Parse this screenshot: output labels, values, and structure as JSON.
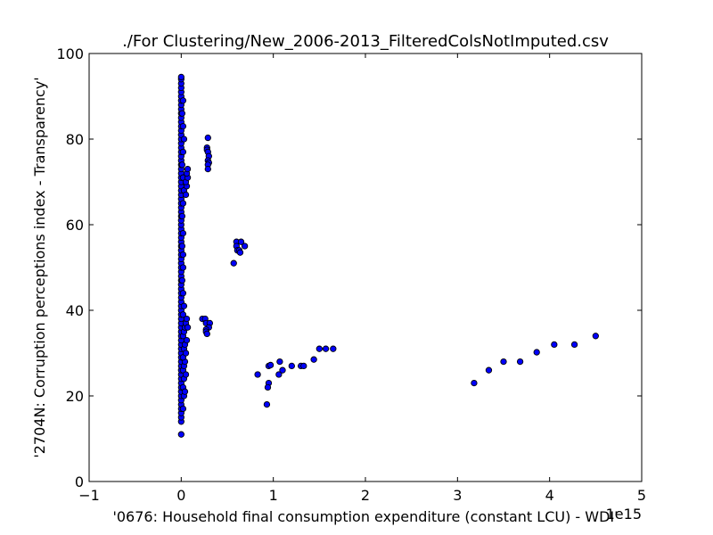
{
  "chart_data": {
    "type": "scatter",
    "title": "./For Clustering/New_2006-2013_FilteredColsNotImputed.csv",
    "xlabel": "'0676: Household final consumption expenditure  (constant LCU) - WDI'",
    "ylabel": "'2704N: Corruption perceptions index - Transparency'",
    "x_offset_label": "1e15",
    "xlim": [
      -1,
      5
    ],
    "ylim": [
      0,
      100
    ],
    "xticks": [
      -1,
      0,
      1,
      2,
      3,
      4,
      5
    ],
    "yticks": [
      0,
      20,
      40,
      60,
      80,
      100
    ],
    "grid": false,
    "marker_color": "#0000ff",
    "series": [
      {
        "points": [
          [
            0.0,
            11
          ],
          [
            0.0,
            14
          ],
          [
            0.0,
            15
          ],
          [
            0.0,
            16
          ],
          [
            0.0,
            17
          ],
          [
            0.0,
            18
          ],
          [
            0.0,
            19
          ],
          [
            0.0,
            20
          ],
          [
            0.0,
            21
          ],
          [
            0.0,
            22
          ],
          [
            0.0,
            23
          ],
          [
            0.0,
            24
          ],
          [
            0.0,
            25
          ],
          [
            0.0,
            26
          ],
          [
            0.0,
            27
          ],
          [
            0.0,
            28
          ],
          [
            0.0,
            29
          ],
          [
            0.0,
            30
          ],
          [
            0.0,
            31
          ],
          [
            0.0,
            32
          ],
          [
            0.0,
            33
          ],
          [
            0.0,
            34
          ],
          [
            0.0,
            35
          ],
          [
            0.0,
            36
          ],
          [
            0.0,
            37
          ],
          [
            0.0,
            38
          ],
          [
            0.0,
            39
          ],
          [
            0.0,
            40
          ],
          [
            0.0,
            41
          ],
          [
            0.0,
            42
          ],
          [
            0.0,
            43
          ],
          [
            0.0,
            44
          ],
          [
            0.0,
            45
          ],
          [
            0.0,
            46
          ],
          [
            0.0,
            47
          ],
          [
            0.0,
            48
          ],
          [
            0.0,
            49
          ],
          [
            0.0,
            50
          ],
          [
            0.0,
            51
          ],
          [
            0.0,
            52
          ],
          [
            0.0,
            53
          ],
          [
            0.0,
            54
          ],
          [
            0.0,
            55
          ],
          [
            0.0,
            56
          ],
          [
            0.0,
            57
          ],
          [
            0.0,
            58
          ],
          [
            0.0,
            59
          ],
          [
            0.0,
            60
          ],
          [
            0.0,
            61
          ],
          [
            0.0,
            62
          ],
          [
            0.0,
            63
          ],
          [
            0.0,
            64
          ],
          [
            0.0,
            65
          ],
          [
            0.0,
            66
          ],
          [
            0.0,
            67
          ],
          [
            0.0,
            68
          ],
          [
            0.0,
            69
          ],
          [
            0.0,
            70
          ],
          [
            0.0,
            71
          ],
          [
            0.0,
            72
          ],
          [
            0.0,
            73
          ],
          [
            0.0,
            74
          ],
          [
            0.0,
            75
          ],
          [
            0.0,
            76
          ],
          [
            0.0,
            77
          ],
          [
            0.0,
            78
          ],
          [
            0.0,
            79
          ],
          [
            0.0,
            80
          ],
          [
            0.0,
            81
          ],
          [
            0.0,
            82
          ],
          [
            0.0,
            83
          ],
          [
            0.0,
            84
          ],
          [
            0.0,
            85
          ],
          [
            0.0,
            86
          ],
          [
            0.0,
            87
          ],
          [
            0.0,
            88
          ],
          [
            0.0,
            89
          ],
          [
            0.0,
            90
          ],
          [
            0.0,
            91
          ],
          [
            0.0,
            92
          ],
          [
            0.0,
            93
          ],
          [
            0.0,
            94
          ],
          [
            0.0,
            94.5
          ],
          [
            0.02,
            17
          ],
          [
            0.03,
            20
          ],
          [
            0.02,
            22
          ],
          [
            0.03,
            24
          ],
          [
            0.02,
            26
          ],
          [
            0.03,
            27
          ],
          [
            0.04,
            28
          ],
          [
            0.02,
            29
          ],
          [
            0.03,
            31
          ],
          [
            0.04,
            32
          ],
          [
            0.02,
            34
          ],
          [
            0.03,
            35
          ],
          [
            0.04,
            36
          ],
          [
            0.05,
            37
          ],
          [
            0.02,
            39
          ],
          [
            0.03,
            41
          ],
          [
            0.02,
            44
          ],
          [
            0.01,
            47
          ],
          [
            0.02,
            50
          ],
          [
            0.02,
            53
          ],
          [
            0.01,
            55
          ],
          [
            0.02,
            58
          ],
          [
            0.01,
            62
          ],
          [
            0.02,
            65
          ],
          [
            0.03,
            68
          ],
          [
            0.02,
            71
          ],
          [
            0.01,
            74
          ],
          [
            0.02,
            77
          ],
          [
            0.03,
            80
          ],
          [
            0.02,
            83
          ],
          [
            0.01,
            86
          ],
          [
            0.02,
            89
          ],
          [
            0.04,
            21
          ],
          [
            0.05,
            25
          ],
          [
            0.05,
            30
          ],
          [
            0.06,
            33
          ],
          [
            0.07,
            36
          ],
          [
            0.06,
            38
          ],
          [
            0.05,
            67
          ],
          [
            0.06,
            69
          ],
          [
            0.05,
            70
          ],
          [
            0.07,
            71
          ],
          [
            0.06,
            72
          ],
          [
            0.07,
            73
          ],
          [
            0.29,
            80.3
          ],
          [
            0.28,
            78
          ],
          [
            0.28,
            77.5
          ],
          [
            0.29,
            77
          ],
          [
            0.3,
            76
          ],
          [
            0.29,
            75
          ],
          [
            0.3,
            74.5
          ],
          [
            0.29,
            74
          ],
          [
            0.29,
            73
          ],
          [
            0.23,
            38
          ],
          [
            0.26,
            38
          ],
          [
            0.27,
            37
          ],
          [
            0.31,
            37
          ],
          [
            0.3,
            36
          ],
          [
            0.27,
            35.5
          ],
          [
            0.27,
            35
          ],
          [
            0.28,
            34.5
          ],
          [
            0.6,
            56
          ],
          [
            0.65,
            56
          ],
          [
            0.6,
            55
          ],
          [
            0.69,
            55
          ],
          [
            0.61,
            54
          ],
          [
            0.63,
            54
          ],
          [
            0.64,
            53.5
          ],
          [
            0.57,
            51
          ],
          [
            0.83,
            25
          ],
          [
            0.95,
            27
          ],
          [
            0.97,
            27.2
          ],
          [
            1.07,
            28
          ],
          [
            0.95,
            23
          ],
          [
            0.94,
            22
          ],
          [
            0.93,
            18
          ],
          [
            1.06,
            25
          ],
          [
            1.1,
            26
          ],
          [
            1.2,
            27
          ],
          [
            1.3,
            27
          ],
          [
            1.33,
            27
          ],
          [
            1.44,
            28.5
          ],
          [
            1.5,
            31
          ],
          [
            1.57,
            31
          ],
          [
            1.65,
            31
          ],
          [
            3.18,
            23
          ],
          [
            3.34,
            26
          ],
          [
            3.5,
            28
          ],
          [
            3.68,
            28
          ],
          [
            3.86,
            30.2
          ],
          [
            4.05,
            32
          ],
          [
            4.27,
            32
          ],
          [
            4.5,
            34
          ]
        ]
      }
    ]
  }
}
